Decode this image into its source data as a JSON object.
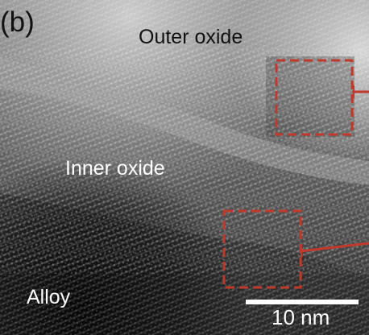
{
  "panel_label": "(b)",
  "regions": {
    "outer_oxide": "Outer oxide",
    "inner_oxide": "Inner oxide",
    "alloy": "Alloy"
  },
  "scale_bar": {
    "label": "10 nm"
  },
  "colors": {
    "highlight_box": "#c0392b",
    "scale_bar": "#ffffff"
  }
}
